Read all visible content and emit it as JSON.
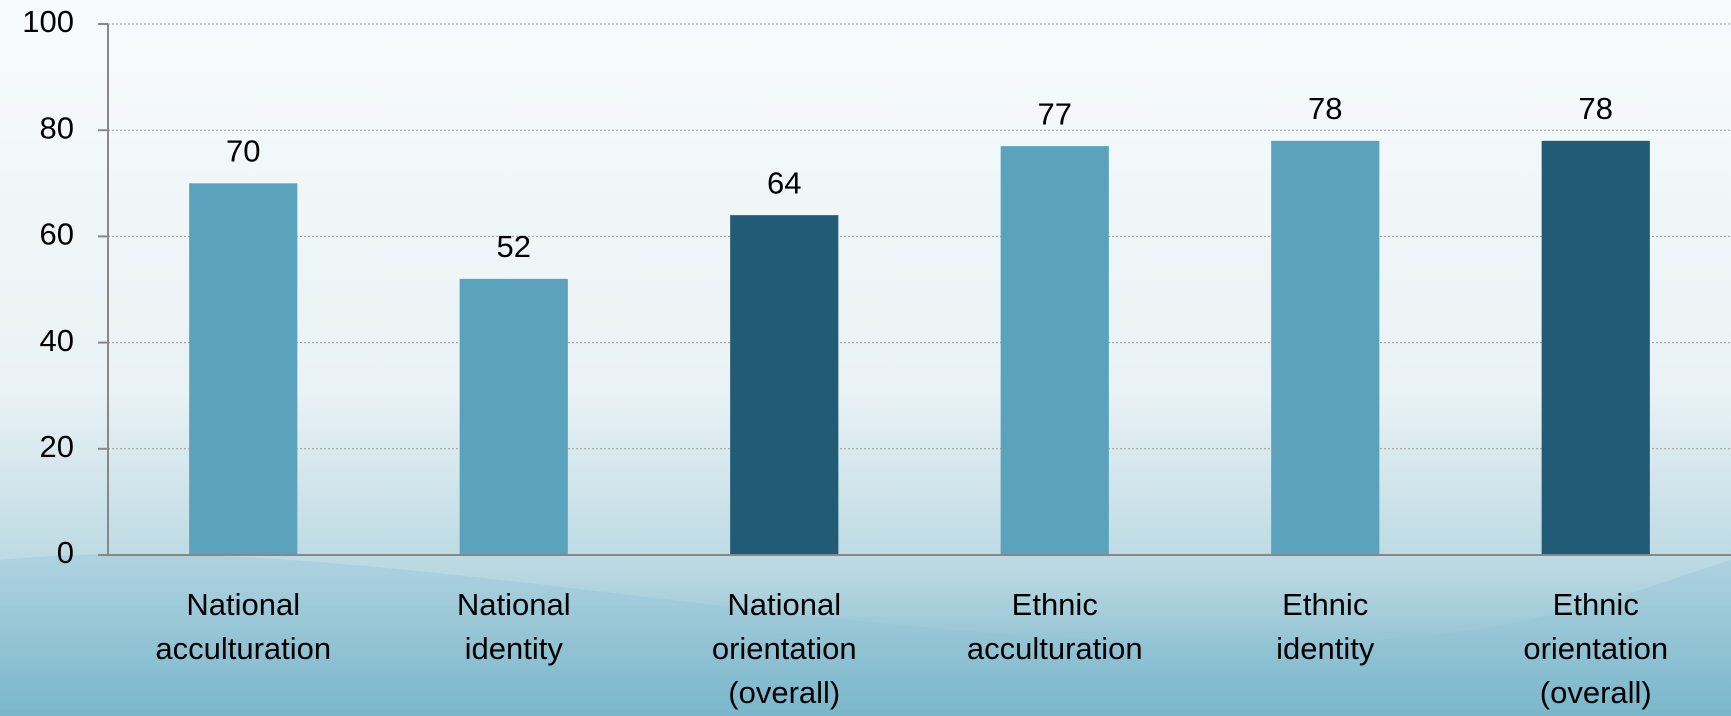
{
  "chart_data": {
    "type": "bar",
    "categories": [
      "National\nacculturation",
      "National\nidentity",
      "National\norientation\n(overall)",
      "Ethnic\nacculturation",
      "Ethnic\nidentity",
      "Ethnic\norientation\n(overall)"
    ],
    "values": [
      70,
      52,
      64,
      77,
      78,
      78
    ],
    "colors": [
      "#5ba3bd",
      "#5ba3bd",
      "#225b75",
      "#5ba3bd",
      "#5ba3bd",
      "#225b75"
    ],
    "ylim": [
      0,
      100
    ],
    "yticks": [
      0,
      20,
      40,
      60,
      80,
      100
    ],
    "grid": true
  }
}
